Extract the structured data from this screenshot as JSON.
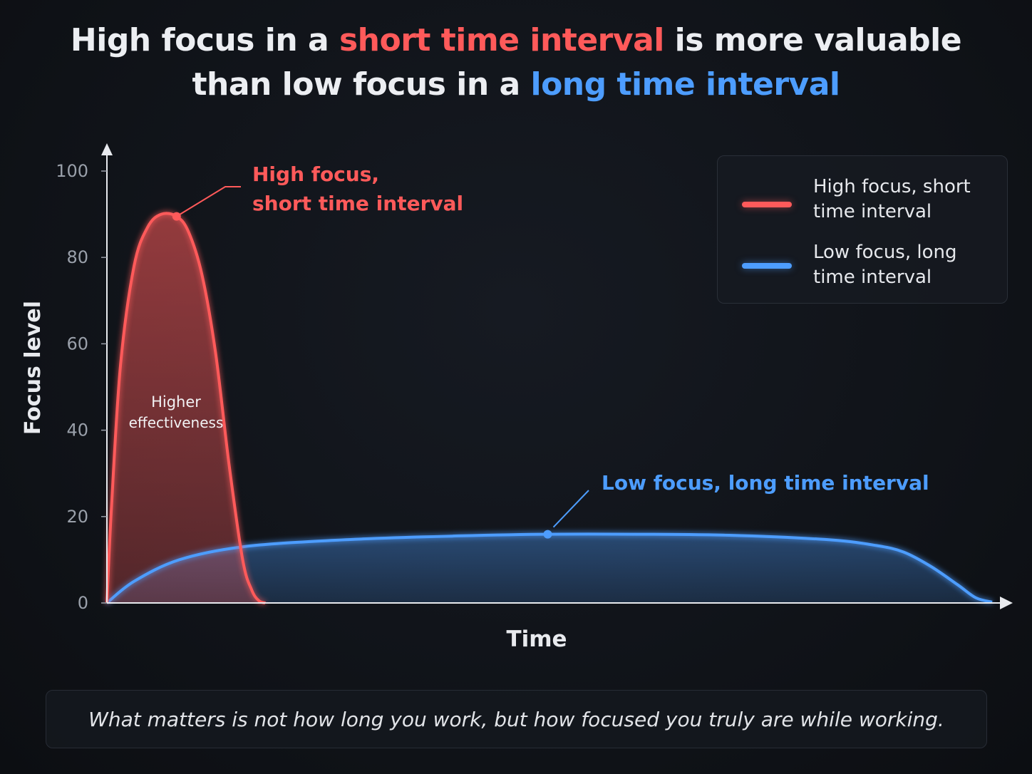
{
  "title": {
    "part1": "High focus in a ",
    "part2_highlight": "short time interval",
    "part3": " is more valuable",
    "part4": "than low focus in a ",
    "part5_highlight": "long time interval"
  },
  "colors": {
    "high": "#ff5a5a",
    "low": "#4d9dff",
    "axis": "#e8eaee",
    "tick": "#9aa0aa"
  },
  "legend": {
    "items": [
      {
        "label_line1": "High focus, short",
        "label_line2": "time interval",
        "color": "#ff5a5a"
      },
      {
        "label_line1": "Low focus, long",
        "label_line2": "time interval",
        "color": "#4d9dff"
      }
    ]
  },
  "chart_data": {
    "type": "area",
    "xlabel": "Time",
    "ylabel": "Focus level",
    "ylim": [
      0,
      100
    ],
    "yticks": [
      "0",
      "20",
      "40",
      "60",
      "80",
      "100"
    ],
    "x_ticks_labeled": false,
    "series": [
      {
        "name": "High focus, short time interval",
        "color": "#ff5a5a",
        "x": [
          0,
          0.5,
          1.5,
          3,
          4.5,
          6,
          7.7,
          9,
          10.5,
          12,
          13.5,
          15,
          16,
          16.8,
          17.5
        ],
        "values": [
          0,
          22,
          55,
          78,
          87,
          90,
          89.5,
          86,
          76,
          58,
          32,
          10,
          3,
          0.5,
          0
        ]
      },
      {
        "name": "Low focus, long time interval",
        "color": "#4d9dff",
        "x": [
          0,
          3,
          8,
          15,
          25,
          35,
          48,
          60,
          70,
          80,
          85,
          88,
          91,
          94,
          96,
          97.8
        ],
        "values": [
          0,
          5,
          10,
          13,
          14.5,
          15.3,
          15.9,
          15.9,
          15.6,
          14.6,
          13.3,
          11.8,
          8.5,
          4.2,
          1.2,
          0.2
        ]
      }
    ],
    "annotations": {
      "high_line1": "High focus,",
      "high_line2": "short time interval",
      "low": "Low focus, long time interval",
      "inside_line1": "Higher",
      "inside_line2": "effectiveness"
    }
  },
  "footer": {
    "text": "What matters is not how long you work, but how focused you truly are while working."
  }
}
